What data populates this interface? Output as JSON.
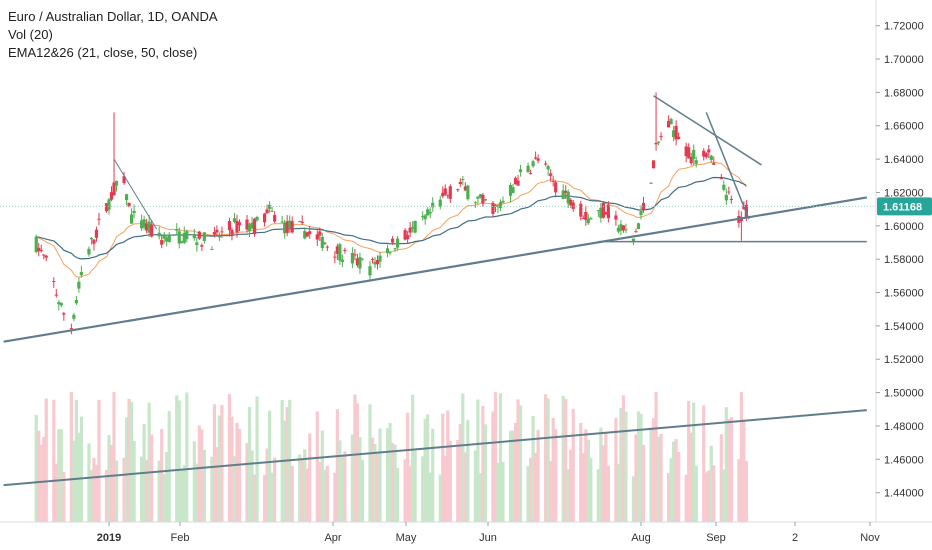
{
  "legend": {
    "title": "Euro / Australian Dollar, 1D, OANDA",
    "volume": "Vol (20)",
    "ema": "EMA12&26 (21, close, 50, close)"
  },
  "colors": {
    "up": "#26a69a",
    "up_body": "#4caf50",
    "down": "#e53950",
    "trendline": "#607d8b",
    "ema_fast": "#f5a15a",
    "ema_slow": "#3f6f8a",
    "volume_up": "#c8e6c9",
    "volume_down": "#f8c9cf",
    "last_price_bg": "#26a69a"
  },
  "chart_data": {
    "type": "candlestick",
    "symbol": "EURAUD",
    "timeframe": "1D",
    "y_axis": {
      "ticks": [
        "1.72000",
        "1.70000",
        "1.68000",
        "1.66000",
        "1.64000",
        "1.62000",
        "1.60000",
        "1.58000",
        "1.56000",
        "1.54000",
        "1.52000",
        "1.50000",
        "1.48000",
        "1.46000",
        "1.44000"
      ],
      "range": [
        1.432,
        1.727
      ]
    },
    "x_axis": {
      "labels": [
        {
          "text": "2019",
          "bold": true
        },
        {
          "text": "Feb",
          "bold": false
        },
        {
          "text": "Apr",
          "bold": false
        },
        {
          "text": "May",
          "bold": false
        },
        {
          "text": "Jun",
          "bold": false
        },
        {
          "text": "Aug",
          "bold": false
        },
        {
          "text": "Sep",
          "bold": false
        },
        {
          "text": "2",
          "bold": false
        },
        {
          "text": "Nov",
          "bold": false
        }
      ]
    },
    "last_price": "1.61168",
    "anchors": [
      [
        "2018-12-01",
        1.595
      ],
      [
        "2018-12-08",
        1.575
      ],
      [
        "2018-12-13",
        1.55
      ],
      [
        "2018-12-17",
        1.54
      ],
      [
        "2018-12-22",
        1.578
      ],
      [
        "2018-12-28",
        1.6
      ],
      [
        "2019-01-03",
        1.622
      ],
      [
        "2019-01-07",
        1.625
      ],
      [
        "2019-01-10",
        1.605
      ],
      [
        "2019-01-15",
        1.6
      ],
      [
        "2019-01-22",
        1.592
      ],
      [
        "2019-02-01",
        1.595
      ],
      [
        "2019-02-10",
        1.59
      ],
      [
        "2019-02-20",
        1.6
      ],
      [
        "2019-02-28",
        1.6
      ],
      [
        "2019-03-06",
        1.608
      ],
      [
        "2019-03-12",
        1.6
      ],
      [
        "2019-03-19",
        1.598
      ],
      [
        "2019-03-26",
        1.592
      ],
      [
        "2019-04-05",
        1.582
      ],
      [
        "2019-04-15",
        1.575
      ],
      [
        "2019-04-25",
        1.59
      ],
      [
        "2019-05-05",
        1.6
      ],
      [
        "2019-05-15",
        1.618
      ],
      [
        "2019-05-21",
        1.625
      ],
      [
        "2019-05-28",
        1.615
      ],
      [
        "2019-06-05",
        1.61
      ],
      [
        "2019-06-14",
        1.63
      ],
      [
        "2019-06-21",
        1.64
      ],
      [
        "2019-06-28",
        1.625
      ],
      [
        "2019-07-05",
        1.615
      ],
      [
        "2019-07-11",
        1.605
      ],
      [
        "2019-07-18",
        1.61
      ],
      [
        "2019-07-24",
        1.598
      ],
      [
        "2019-07-29",
        1.592
      ],
      [
        "2019-08-03",
        1.615
      ],
      [
        "2019-08-07",
        1.645
      ],
      [
        "2019-08-11",
        1.662
      ],
      [
        "2019-08-16",
        1.655
      ],
      [
        "2019-08-21",
        1.64
      ],
      [
        "2019-08-27",
        1.645
      ],
      [
        "2019-09-02",
        1.625
      ],
      [
        "2019-09-09",
        1.605
      ],
      [
        "2019-09-13",
        1.611
      ]
    ]
  }
}
